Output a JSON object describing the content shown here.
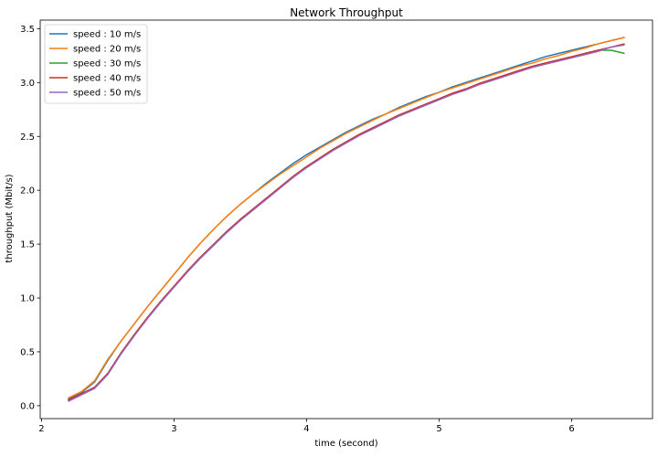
{
  "chart_data": {
    "type": "line",
    "title": "Network Throughput",
    "xlabel": "time (second)",
    "ylabel": "throughput (Mbit/s)",
    "xlim": [
      1.99,
      6.61
    ],
    "ylim": [
      -0.12,
      3.58
    ],
    "xticks": [
      2,
      3,
      4,
      5,
      6
    ],
    "yticks": [
      0.0,
      0.5,
      1.0,
      1.5,
      2.0,
      2.5,
      3.0,
      3.5
    ],
    "xtick_labels": [
      "2",
      "3",
      "4",
      "5",
      "6"
    ],
    "ytick_labels": [
      "0.0",
      "0.5",
      "1.0",
      "1.5",
      "2.0",
      "2.5",
      "3.0",
      "3.5"
    ],
    "grid": false,
    "legend_position": "top-left",
    "series": [
      {
        "name": "speed : 10 m/s",
        "color": "#1f77b4",
        "points": [
          [
            2.2,
            0.06
          ],
          [
            2.3,
            0.12
          ],
          [
            2.4,
            0.22
          ],
          [
            2.5,
            0.42
          ],
          [
            2.6,
            0.6
          ],
          [
            2.7,
            0.76
          ],
          [
            2.8,
            0.92
          ],
          [
            2.9,
            1.07
          ],
          [
            3.0,
            1.22
          ],
          [
            3.1,
            1.37
          ],
          [
            3.2,
            1.51
          ],
          [
            3.3,
            1.64
          ],
          [
            3.4,
            1.76
          ],
          [
            3.5,
            1.87
          ],
          [
            3.6,
            1.97
          ],
          [
            3.7,
            2.07
          ],
          [
            3.8,
            2.16
          ],
          [
            3.9,
            2.25
          ],
          [
            4.0,
            2.33
          ],
          [
            4.1,
            2.4
          ],
          [
            4.2,
            2.47
          ],
          [
            4.3,
            2.54
          ],
          [
            4.4,
            2.6
          ],
          [
            4.5,
            2.66
          ],
          [
            4.6,
            2.71
          ],
          [
            4.7,
            2.77
          ],
          [
            4.8,
            2.82
          ],
          [
            4.9,
            2.87
          ],
          [
            5.0,
            2.91
          ],
          [
            5.1,
            2.96
          ],
          [
            5.2,
            3.0
          ],
          [
            5.3,
            3.04
          ],
          [
            5.4,
            3.08
          ],
          [
            5.5,
            3.12
          ],
          [
            5.6,
            3.16
          ],
          [
            5.7,
            3.2
          ],
          [
            5.8,
            3.24
          ],
          [
            5.9,
            3.27
          ],
          [
            6.0,
            3.3
          ],
          [
            6.1,
            3.33
          ],
          [
            6.2,
            3.36
          ],
          [
            6.3,
            3.39
          ],
          [
            6.4,
            3.42
          ]
        ]
      },
      {
        "name": "speed : 20 m/s",
        "color": "#ff7f0e",
        "points": [
          [
            2.2,
            0.07
          ],
          [
            2.3,
            0.13
          ],
          [
            2.4,
            0.23
          ],
          [
            2.5,
            0.43
          ],
          [
            2.6,
            0.6
          ],
          [
            2.7,
            0.76
          ],
          [
            2.8,
            0.92
          ],
          [
            2.9,
            1.07
          ],
          [
            3.0,
            1.22
          ],
          [
            3.1,
            1.37
          ],
          [
            3.2,
            1.51
          ],
          [
            3.3,
            1.64
          ],
          [
            3.4,
            1.76
          ],
          [
            3.5,
            1.87
          ],
          [
            3.6,
            1.97
          ],
          [
            3.7,
            2.06
          ],
          [
            3.8,
            2.15
          ],
          [
            3.9,
            2.23
          ],
          [
            4.0,
            2.31
          ],
          [
            4.1,
            2.39
          ],
          [
            4.2,
            2.46
          ],
          [
            4.3,
            2.53
          ],
          [
            4.4,
            2.59
          ],
          [
            4.5,
            2.65
          ],
          [
            4.6,
            2.71
          ],
          [
            4.7,
            2.76
          ],
          [
            4.8,
            2.81
          ],
          [
            4.9,
            2.86
          ],
          [
            5.0,
            2.91
          ],
          [
            5.1,
            2.95
          ],
          [
            5.2,
            2.99
          ],
          [
            5.3,
            3.03
          ],
          [
            5.4,
            3.07
          ],
          [
            5.5,
            3.11
          ],
          [
            5.6,
            3.15
          ],
          [
            5.7,
            3.18
          ],
          [
            5.8,
            3.22
          ],
          [
            5.9,
            3.25
          ],
          [
            6.0,
            3.29
          ],
          [
            6.1,
            3.32
          ],
          [
            6.2,
            3.36
          ],
          [
            6.3,
            3.39
          ],
          [
            6.4,
            3.42
          ]
        ]
      },
      {
        "name": "speed : 30 m/s",
        "color": "#2ca02c",
        "points": [
          [
            2.2,
            0.05
          ],
          [
            2.3,
            0.11
          ],
          [
            2.4,
            0.17
          ],
          [
            2.5,
            0.3
          ],
          [
            2.6,
            0.49
          ],
          [
            2.7,
            0.66
          ],
          [
            2.8,
            0.82
          ],
          [
            2.9,
            0.97
          ],
          [
            3.0,
            1.11
          ],
          [
            3.1,
            1.25
          ],
          [
            3.2,
            1.38
          ],
          [
            3.3,
            1.5
          ],
          [
            3.4,
            1.62
          ],
          [
            3.5,
            1.73
          ],
          [
            3.6,
            1.83
          ],
          [
            3.7,
            1.93
          ],
          [
            3.8,
            2.03
          ],
          [
            3.9,
            2.13
          ],
          [
            4.0,
            2.22
          ],
          [
            4.1,
            2.3
          ],
          [
            4.2,
            2.38
          ],
          [
            4.3,
            2.45
          ],
          [
            4.4,
            2.52
          ],
          [
            4.5,
            2.58
          ],
          [
            4.6,
            2.64
          ],
          [
            4.7,
            2.7
          ],
          [
            4.8,
            2.75
          ],
          [
            4.9,
            2.8
          ],
          [
            5.0,
            2.85
          ],
          [
            5.1,
            2.9
          ],
          [
            5.2,
            2.94
          ],
          [
            5.3,
            2.99
          ],
          [
            5.4,
            3.03
          ],
          [
            5.5,
            3.07
          ],
          [
            5.6,
            3.11
          ],
          [
            5.7,
            3.15
          ],
          [
            5.8,
            3.18
          ],
          [
            5.9,
            3.21
          ],
          [
            6.0,
            3.24
          ],
          [
            6.1,
            3.27
          ],
          [
            6.2,
            3.3
          ],
          [
            6.3,
            3.3
          ],
          [
            6.4,
            3.27
          ]
        ]
      },
      {
        "name": "speed : 40 m/s",
        "color": "#d62728",
        "points": [
          [
            2.2,
            0.05
          ],
          [
            2.3,
            0.11
          ],
          [
            2.4,
            0.17
          ],
          [
            2.5,
            0.3
          ],
          [
            2.6,
            0.49
          ],
          [
            2.7,
            0.66
          ],
          [
            2.8,
            0.82
          ],
          [
            2.9,
            0.97
          ],
          [
            3.0,
            1.11
          ],
          [
            3.1,
            1.25
          ],
          [
            3.2,
            1.38
          ],
          [
            3.3,
            1.5
          ],
          [
            3.4,
            1.62
          ],
          [
            3.5,
            1.73
          ],
          [
            3.6,
            1.83
          ],
          [
            3.7,
            1.93
          ],
          [
            3.8,
            2.03
          ],
          [
            3.9,
            2.13
          ],
          [
            4.0,
            2.22
          ],
          [
            4.1,
            2.3
          ],
          [
            4.2,
            2.38
          ],
          [
            4.3,
            2.45
          ],
          [
            4.4,
            2.52
          ],
          [
            4.5,
            2.58
          ],
          [
            4.6,
            2.64
          ],
          [
            4.7,
            2.7
          ],
          [
            4.8,
            2.75
          ],
          [
            4.9,
            2.8
          ],
          [
            5.0,
            2.85
          ],
          [
            5.1,
            2.9
          ],
          [
            5.2,
            2.94
          ],
          [
            5.3,
            2.99
          ],
          [
            5.4,
            3.03
          ],
          [
            5.5,
            3.07
          ],
          [
            5.6,
            3.11
          ],
          [
            5.7,
            3.15
          ],
          [
            5.8,
            3.18
          ],
          [
            5.9,
            3.21
          ],
          [
            6.0,
            3.24
          ],
          [
            6.1,
            3.27
          ],
          [
            6.2,
            3.3
          ],
          [
            6.3,
            3.33
          ],
          [
            6.4,
            3.36
          ]
        ]
      },
      {
        "name": "speed : 50 m/s",
        "color": "#9467bd",
        "points": [
          [
            2.2,
            0.04
          ],
          [
            2.3,
            0.1
          ],
          [
            2.4,
            0.16
          ],
          [
            2.5,
            0.29
          ],
          [
            2.6,
            0.48
          ],
          [
            2.7,
            0.65
          ],
          [
            2.8,
            0.81
          ],
          [
            2.9,
            0.96
          ],
          [
            3.0,
            1.1
          ],
          [
            3.1,
            1.24
          ],
          [
            3.2,
            1.37
          ],
          [
            3.3,
            1.49
          ],
          [
            3.4,
            1.61
          ],
          [
            3.5,
            1.72
          ],
          [
            3.6,
            1.82
          ],
          [
            3.7,
            1.92
          ],
          [
            3.8,
            2.02
          ],
          [
            3.9,
            2.12
          ],
          [
            4.0,
            2.21
          ],
          [
            4.1,
            2.29
          ],
          [
            4.2,
            2.37
          ],
          [
            4.3,
            2.44
          ],
          [
            4.4,
            2.51
          ],
          [
            4.5,
            2.57
          ],
          [
            4.6,
            2.63
          ],
          [
            4.7,
            2.69
          ],
          [
            4.8,
            2.74
          ],
          [
            4.9,
            2.79
          ],
          [
            5.0,
            2.84
          ],
          [
            5.1,
            2.89
          ],
          [
            5.2,
            2.93
          ],
          [
            5.3,
            2.98
          ],
          [
            5.4,
            3.02
          ],
          [
            5.5,
            3.06
          ],
          [
            5.6,
            3.1
          ],
          [
            5.7,
            3.14
          ],
          [
            5.8,
            3.17
          ],
          [
            5.9,
            3.2
          ],
          [
            6.0,
            3.23
          ],
          [
            6.1,
            3.26
          ],
          [
            6.2,
            3.29
          ],
          [
            6.3,
            3.33
          ],
          [
            6.4,
            3.35
          ]
        ]
      }
    ]
  }
}
